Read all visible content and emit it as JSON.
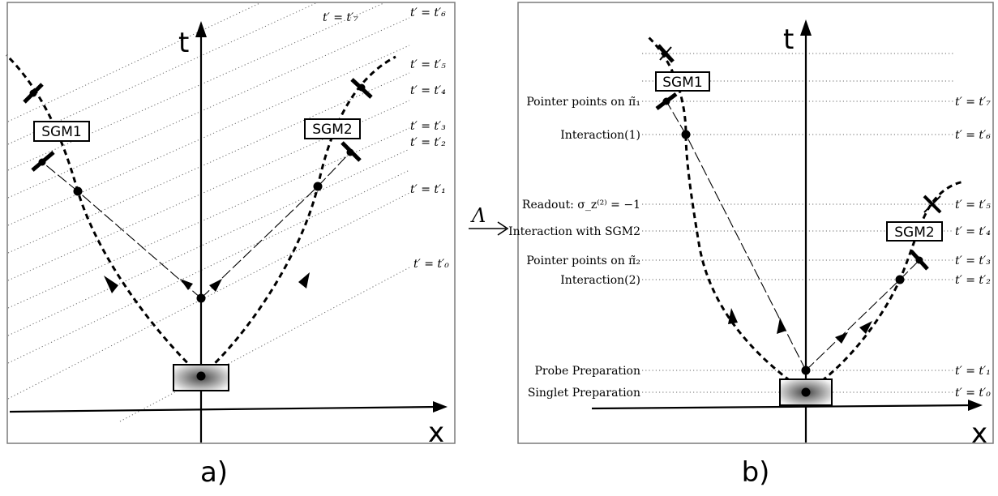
{
  "panel_a": {
    "caption": "a)",
    "axis_t": "t",
    "axis_x": "x",
    "labels": {
      "sgm1": "SGM1",
      "sgm2": "SGM2",
      "t7": "t′ = t′₇",
      "t6": "t′ = t′₆",
      "t5": "t′ = t′₅",
      "t4": "t′ = t′₄",
      "t3": "t′ = t′₃",
      "t2": "t′ = t′₂",
      "t1": "t′ = t′₁",
      "t0": "t′ = t′₀"
    }
  },
  "transform_symbol": "Λ",
  "panel_b": {
    "caption": "b)",
    "axis_t": "t",
    "axis_x": "x",
    "labels": {
      "sgm1": "SGM1",
      "sgm2": "SGM2",
      "pointer1": "Pointer points on π̃₁",
      "interaction1": "Interaction(1)",
      "readout": "Readout: σ_z⁽²⁾ = −1",
      "interaction_sgm2": "Interaction with SGM2",
      "pointer2": "Pointer points on π̃₂",
      "interaction2": "Interaction(2)",
      "probe": "Probe Preparation",
      "singlet": "Singlet Preparation",
      "t7": "t′ = t′₇",
      "t6": "t′ = t′₆",
      "t5": "t′ = t′₅",
      "t4": "t′ = t′₄",
      "t3": "t′ = t′₃",
      "t2": "t′ = t′₂",
      "t1": "t′ = t′₁",
      "t0": "t′ = t′₀"
    }
  }
}
